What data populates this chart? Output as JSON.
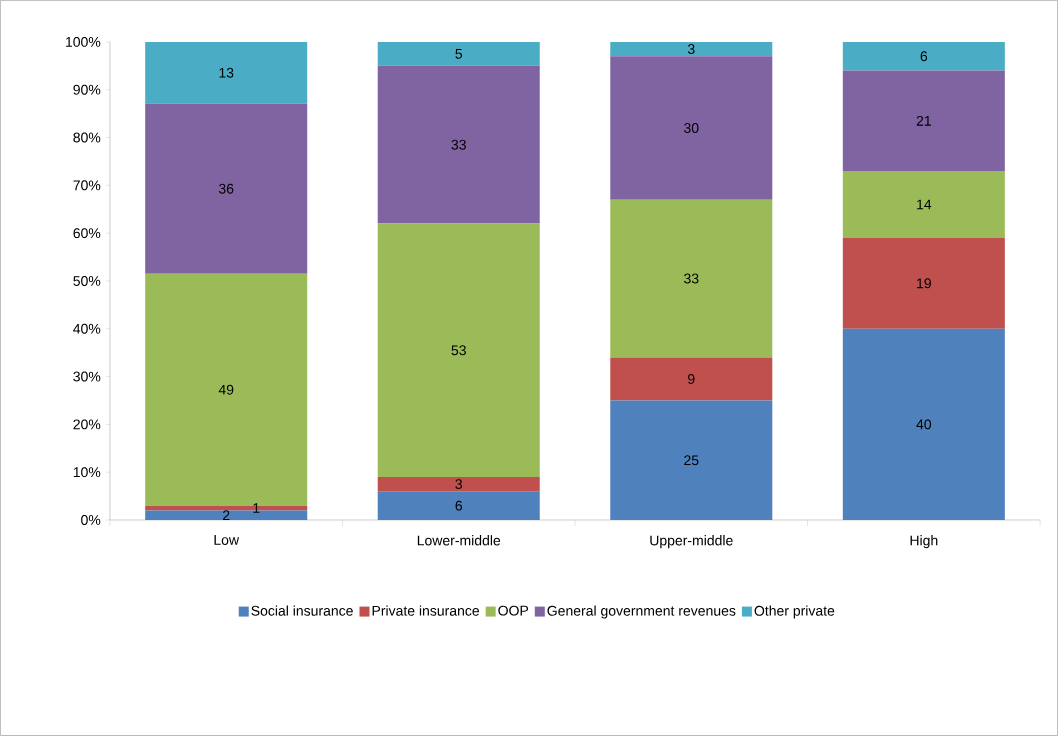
{
  "chart_data": {
    "type": "bar",
    "stacked": true,
    "categories": [
      "Low",
      "Lower-middle",
      "Upper-middle",
      "High"
    ],
    "series": [
      {
        "name": "Social insurance",
        "color": "#4f81bd",
        "values": [
          2,
          6,
          25,
          40
        ],
        "value_labels": [
          "2",
          "6",
          "25",
          "40"
        ]
      },
      {
        "name": "Private insurance",
        "color": "#c0504d",
        "values": [
          1,
          3,
          9,
          19
        ],
        "value_labels": [
          "1",
          "3",
          "9",
          "19"
        ]
      },
      {
        "name": "OOP",
        "color": "#9bbb59",
        "values": [
          48.5,
          53,
          33,
          14
        ],
        "value_labels": [
          "49",
          "53",
          "33",
          "14"
        ]
      },
      {
        "name": "General government revenues",
        "color": "#8064a2",
        "values": [
          35.6,
          33,
          30,
          21
        ],
        "value_labels": [
          "36",
          "33",
          "30",
          "21"
        ]
      },
      {
        "name": "Other private",
        "color": "#4bacc6",
        "values": [
          12.9,
          5,
          3,
          6
        ],
        "value_labels": [
          "13",
          "5",
          "3",
          "6"
        ]
      }
    ],
    "ylim": [
      0,
      100
    ],
    "yticks": [
      {
        "value": 0,
        "label": "0%"
      },
      {
        "value": 10,
        "label": "10%"
      },
      {
        "value": 20,
        "label": "20%"
      },
      {
        "value": 30,
        "label": "30%"
      },
      {
        "value": 40,
        "label": "40%"
      },
      {
        "value": 50,
        "label": "50%"
      },
      {
        "value": 60,
        "label": "60%"
      },
      {
        "value": 70,
        "label": "70%"
      },
      {
        "value": 80,
        "label": "80%"
      },
      {
        "value": 90,
        "label": "90%"
      },
      {
        "value": 100,
        "label": "100%"
      }
    ],
    "legend": "bottom"
  }
}
